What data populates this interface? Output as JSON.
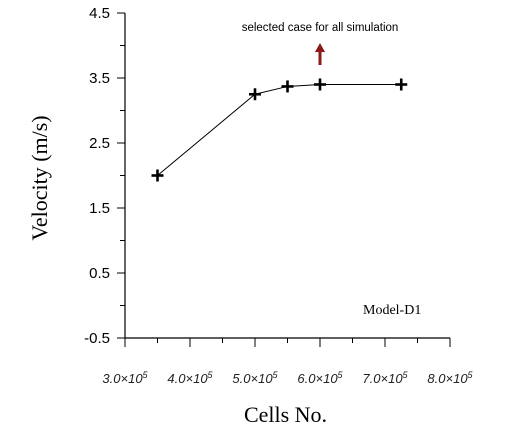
{
  "chart_data": {
    "type": "line",
    "xlabel": "Cells No.",
    "ylabel": "Velocity (m/s)",
    "x": [
      350000,
      500000,
      550000,
      600000,
      725000
    ],
    "y": [
      2.0,
      3.25,
      3.37,
      3.4,
      3.4
    ],
    "xlim": [
      300000,
      800000
    ],
    "ylim": [
      -0.5,
      4.5
    ],
    "x_ticks": [
      300000,
      400000,
      500000,
      600000,
      700000,
      800000
    ],
    "x_tick_labels": [
      {
        "mantissa": "3.0×10",
        "exp": "5"
      },
      {
        "mantissa": "4.0×10",
        "exp": "5"
      },
      {
        "mantissa": "5.0×10",
        "exp": "5"
      },
      {
        "mantissa": "6.0×10",
        "exp": "5"
      },
      {
        "mantissa": "7.0×10",
        "exp": "5"
      },
      {
        "mantissa": "8.0×10",
        "exp": "5"
      }
    ],
    "y_ticks": [
      4.5,
      3.5,
      2.5,
      1.5,
      0.5,
      -0.5
    ],
    "y_tick_labels": [
      "4.5",
      "3.5",
      "2.5",
      "1.5",
      "0.5",
      "-0.5"
    ],
    "marker": "plus",
    "grid": false,
    "annotations": {
      "selected_note": "selected case for all simulation",
      "selected_x": 600000,
      "arrow_color": "#8b1a1a",
      "model_label": "Model-D1"
    }
  }
}
